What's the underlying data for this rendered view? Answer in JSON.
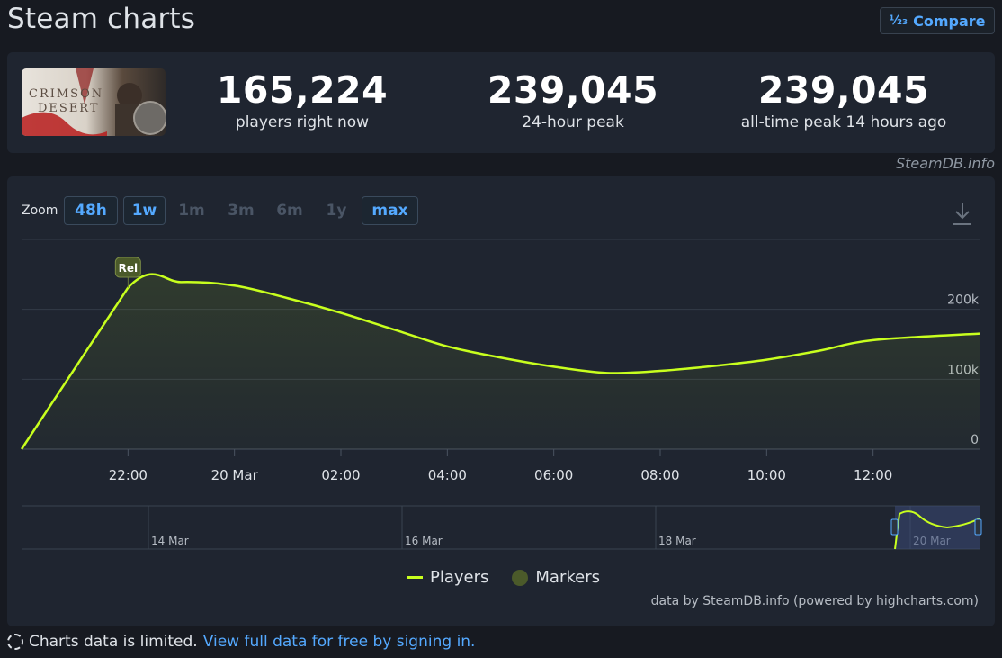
{
  "page": {
    "title": "Steam charts"
  },
  "compare": {
    "label": "Compare",
    "icon": "fraction-icon",
    "icon_text": "½₃"
  },
  "stats": {
    "capsule": {
      "icon": "game-capsule-image",
      "accent": "#c62828"
    },
    "current": {
      "value": "165,224",
      "label": "players right now"
    },
    "peak24": {
      "value": "239,045",
      "label": "24-hour peak"
    },
    "alltime": {
      "value": "239,045",
      "label": "all-time peak 14 hours ago"
    }
  },
  "watermark": "SteamDB.info",
  "zoom": {
    "label": "Zoom",
    "buttons": [
      {
        "label": "48h",
        "state": "active"
      },
      {
        "label": "1w",
        "state": "active"
      },
      {
        "label": "1m",
        "state": "disabled"
      },
      {
        "label": "3m",
        "state": "disabled"
      },
      {
        "label": "6m",
        "state": "disabled"
      },
      {
        "label": "1y",
        "state": "disabled"
      },
      {
        "label": "max",
        "state": "active"
      }
    ]
  },
  "download": {
    "icon": "download-icon"
  },
  "legend": {
    "players": "Players",
    "markers": "Markers"
  },
  "credits": "data by SteamDB.info (powered by highcharts.com)",
  "notice": {
    "text": "Charts data is limited.",
    "link": "View full data for free by signing in."
  },
  "chart_data": {
    "type": "area",
    "x_unit": "hours since 20:00 on 19 Mar",
    "x_ticks": [
      {
        "x": 2,
        "label": "22:00"
      },
      {
        "x": 4,
        "label": "20 Mar"
      },
      {
        "x": 6,
        "label": "02:00"
      },
      {
        "x": 8,
        "label": "04:00"
      },
      {
        "x": 10,
        "label": "06:00"
      },
      {
        "x": 12,
        "label": "08:00"
      },
      {
        "x": 14,
        "label": "10:00"
      },
      {
        "x": 16,
        "label": "12:00"
      }
    ],
    "y_ticks": [
      {
        "y": 0,
        "label": "0"
      },
      {
        "y": 100000,
        "label": "100k"
      },
      {
        "y": 200000,
        "label": "200k"
      }
    ],
    "xlim": [
      0,
      18.0
    ],
    "ylim": [
      0,
      300000
    ],
    "grid": true,
    "series": [
      {
        "name": "Players",
        "color": "#c8ff1e",
        "points": [
          [
            0,
            0
          ],
          [
            2,
            231000
          ],
          [
            3,
            239000
          ],
          [
            4,
            234000
          ],
          [
            5,
            216000
          ],
          [
            6,
            195000
          ],
          [
            7,
            171000
          ],
          [
            8,
            147000
          ],
          [
            9,
            131000
          ],
          [
            10,
            118000
          ],
          [
            11,
            109000
          ],
          [
            12,
            112000
          ],
          [
            13,
            119000
          ],
          [
            14,
            128000
          ],
          [
            15,
            141000
          ],
          [
            16,
            156000
          ],
          [
            18.0,
            165224
          ]
        ]
      }
    ],
    "markers": [
      {
        "x": 2,
        "label": "Rel",
        "color": "#4b5a2a"
      }
    ],
    "navigator": {
      "labels": [
        "14 Mar",
        "16 Mar",
        "18 Mar",
        "20 Mar"
      ],
      "selected_label": "20 Mar"
    }
  }
}
